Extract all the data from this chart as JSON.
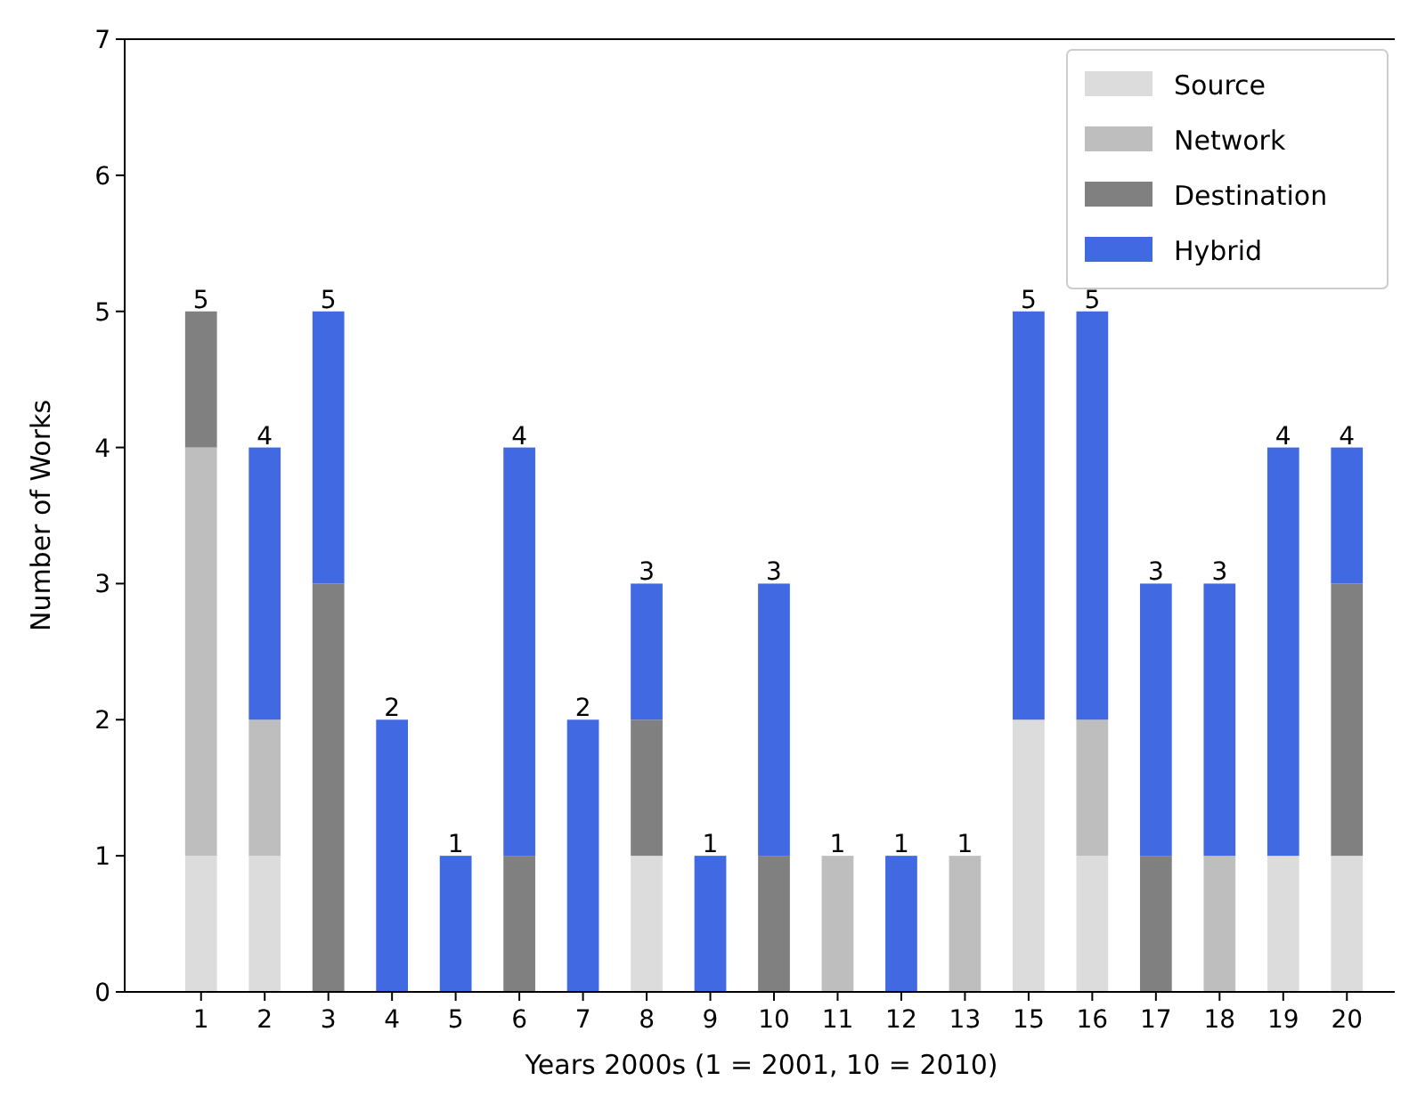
{
  "chart_data": {
    "type": "bar",
    "stacked": true,
    "xlabel": "Years 2000s (1 = 2001, 10 = 2010)",
    "ylabel": "Number of Works",
    "categories": [
      "1",
      "2",
      "3",
      "4",
      "5",
      "6",
      "7",
      "8",
      "9",
      "10",
      "11",
      "12",
      "13",
      "15",
      "16",
      "17",
      "18",
      "19",
      "20"
    ],
    "series": [
      {
        "name": "Source",
        "color": "#dcdcdc",
        "values": [
          1,
          1,
          0,
          0,
          0,
          0,
          0,
          1,
          0,
          0,
          0,
          0,
          0,
          2,
          1,
          0,
          0,
          1,
          1
        ]
      },
      {
        "name": "Network",
        "color": "#bebebe",
        "values": [
          3,
          1,
          0,
          0,
          0,
          0,
          0,
          0,
          0,
          0,
          1,
          0,
          1,
          0,
          1,
          0,
          1,
          0,
          0
        ]
      },
      {
        "name": "Destination",
        "color": "#808080",
        "values": [
          1,
          0,
          3,
          0,
          0,
          1,
          0,
          1,
          0,
          1,
          0,
          0,
          0,
          0,
          0,
          1,
          0,
          0,
          2
        ]
      },
      {
        "name": "Hybrid",
        "color": "#4169e1",
        "values": [
          0,
          2,
          2,
          2,
          1,
          3,
          2,
          1,
          1,
          2,
          0,
          1,
          0,
          3,
          3,
          2,
          2,
          3,
          1
        ]
      }
    ],
    "totals": [
      "5",
      "4",
      "5",
      "2",
      "1",
      "4",
      "2",
      "3",
      "1",
      "3",
      "1",
      "1",
      "1",
      "5",
      "5",
      "3",
      "3",
      "4",
      "4"
    ],
    "ylim": [
      0,
      7
    ],
    "yticks": [
      0,
      1,
      2,
      3,
      4,
      5,
      6,
      7
    ],
    "legend": "top right",
    "grid": false
  }
}
